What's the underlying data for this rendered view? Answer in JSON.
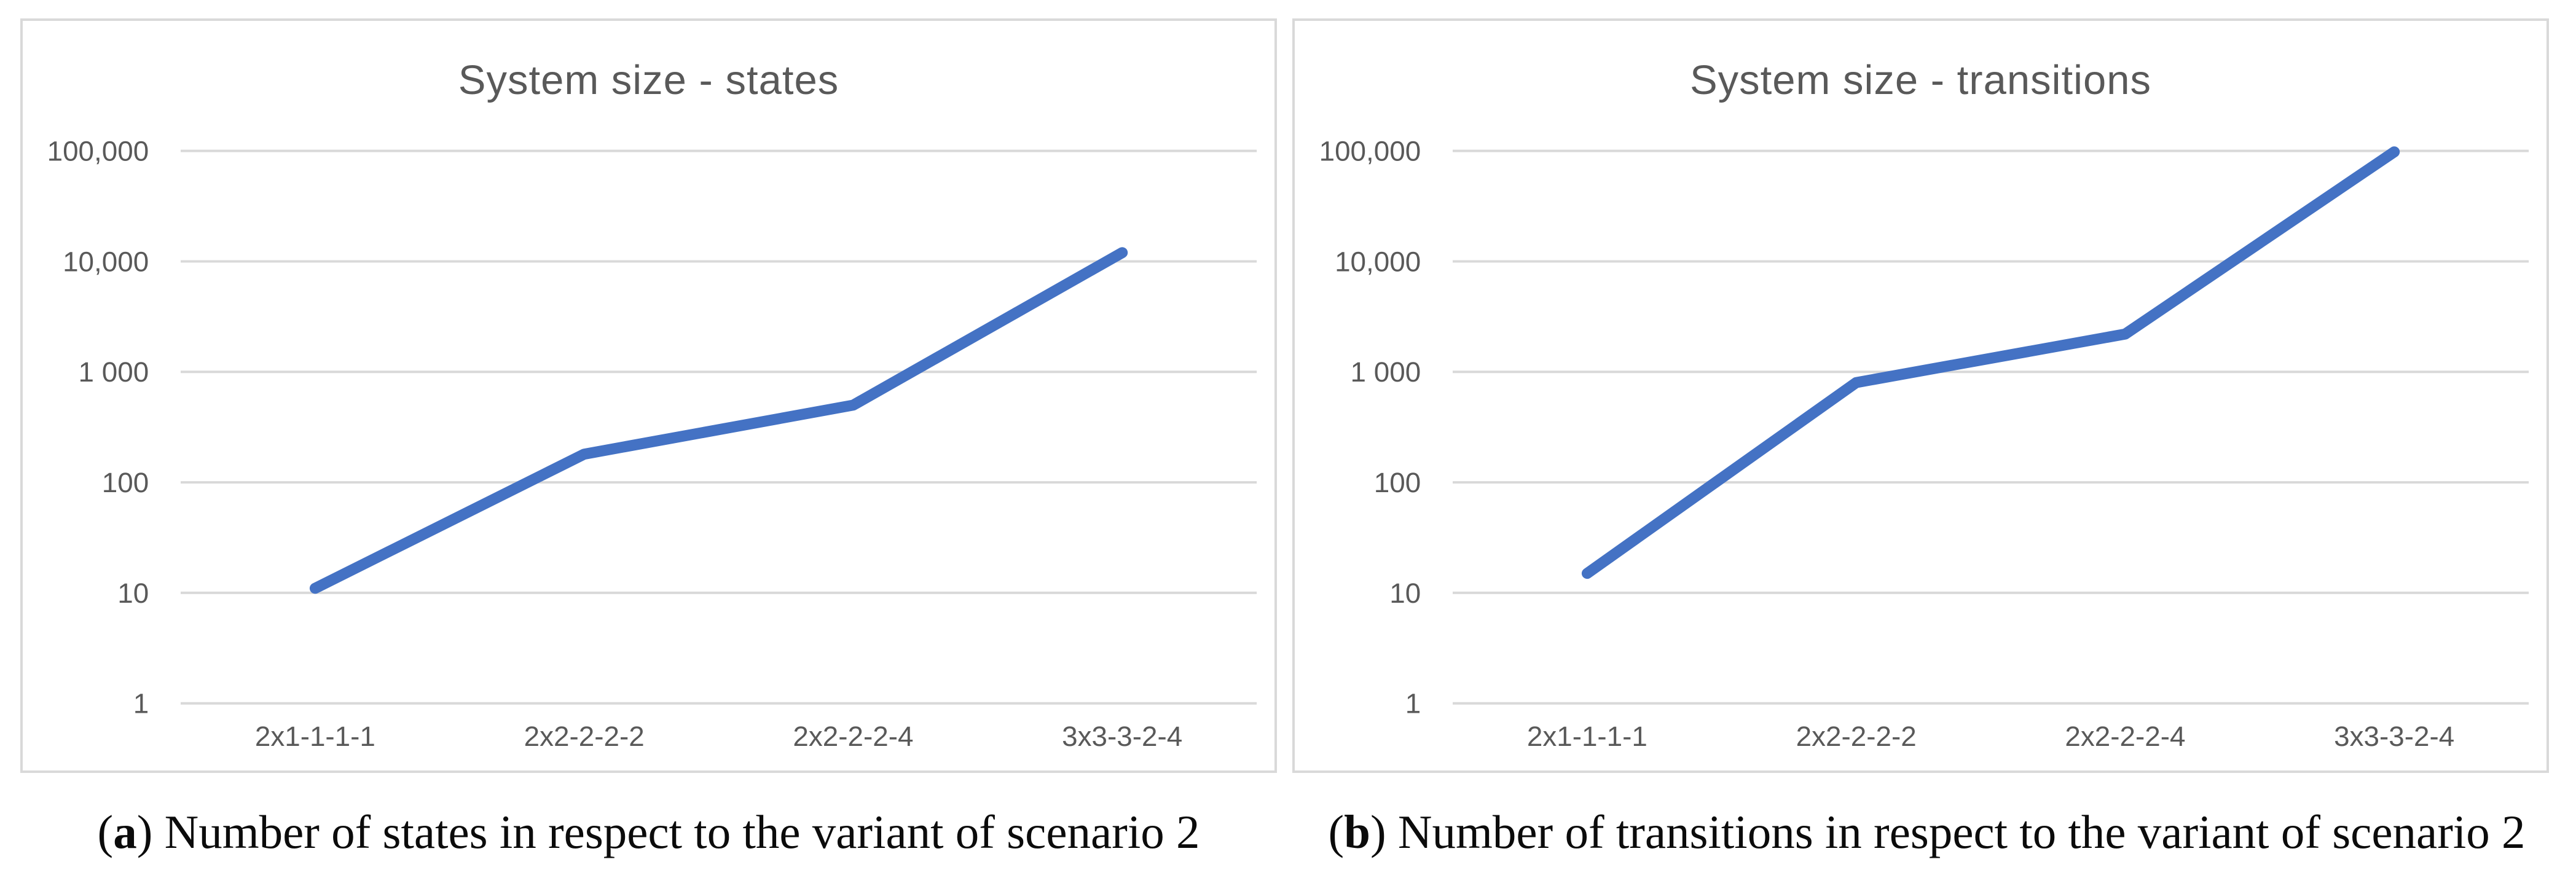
{
  "figure": {
    "background_color": "#ffffff",
    "panel_border_color": "#d9d9d9"
  },
  "chart_data": [
    {
      "type": "line",
      "title": "System size - states",
      "categories": [
        "2x1-1-1-1",
        "2x2-2-2-2",
        "2x2-2-2-4",
        "3x3-3-2-4"
      ],
      "series": [
        {
          "name": "states",
          "values": [
            11,
            180,
            500,
            12000
          ]
        }
      ],
      "ytick_labels": [
        "100,000",
        "10,000",
        "1 000",
        "100",
        "10",
        "1"
      ],
      "ytick_values": [
        100000,
        10000,
        1000,
        100,
        10,
        1
      ],
      "yscale": "log",
      "ylim": [
        1,
        100000
      ],
      "xlabel": "",
      "ylabel": "",
      "grid": "horizontal",
      "legend": "none",
      "line_color": "#4472C4",
      "gridline_color": "#D9D9D9",
      "text_color": "#595959"
    },
    {
      "type": "line",
      "title": "System size - transitions",
      "categories": [
        "2x1-1-1-1",
        "2x2-2-2-2",
        "2x2-2-2-4",
        "3x3-3-2-4"
      ],
      "series": [
        {
          "name": "transitions",
          "values": [
            15,
            800,
            2200,
            98000
          ]
        }
      ],
      "ytick_labels": [
        "100,000",
        "10,000",
        "1 000",
        "100",
        "10",
        "1"
      ],
      "ytick_values": [
        100000,
        10000,
        1000,
        100,
        10,
        1
      ],
      "yscale": "log",
      "ylim": [
        1,
        100000
      ],
      "xlabel": "",
      "ylabel": "",
      "grid": "horizontal",
      "legend": "none",
      "line_color": "#4472C4",
      "gridline_color": "#D9D9D9",
      "text_color": "#595959"
    }
  ],
  "captions": [
    {
      "open": "(",
      "letter": "a",
      "close": ") ",
      "text": "Number of states in respect to the variant of scenario 2"
    },
    {
      "open": "(",
      "letter": "b",
      "close": ") ",
      "text": "Number of transitions in respect to the variant of scenario 2"
    }
  ]
}
